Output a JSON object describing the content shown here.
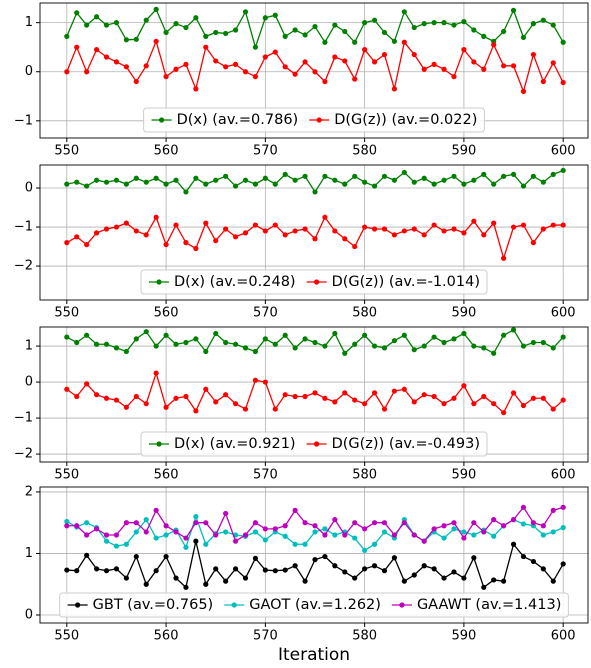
{
  "chart_data": [
    {
      "type": "line",
      "x": [
        550,
        551,
        552,
        553,
        554,
        555,
        556,
        557,
        558,
        559,
        560,
        561,
        562,
        563,
        564,
        565,
        566,
        567,
        568,
        569,
        570,
        571,
        572,
        573,
        574,
        575,
        576,
        577,
        578,
        579,
        580,
        581,
        582,
        583,
        584,
        585,
        586,
        587,
        588,
        589,
        590,
        591,
        592,
        593,
        594,
        595,
        596,
        597,
        598,
        599,
        600
      ],
      "series": [
        {
          "name": "D(x) (av.=0.786)",
          "color": "#008000",
          "values": [
            0.72,
            1.2,
            0.95,
            1.12,
            0.95,
            1.0,
            0.65,
            0.66,
            1.05,
            1.27,
            0.8,
            0.98,
            0.9,
            1.1,
            0.72,
            0.8,
            0.78,
            0.85,
            1.22,
            0.5,
            1.1,
            1.15,
            0.72,
            0.85,
            0.75,
            0.92,
            0.6,
            0.95,
            0.82,
            0.6,
            1.0,
            1.05,
            0.8,
            0.62,
            1.22,
            0.9,
            0.98,
            1.0,
            1.0,
            0.95,
            1.02,
            0.85,
            0.72,
            0.62,
            0.82,
            1.25,
            0.7,
            0.98,
            1.05,
            0.95,
            0.6
          ]
        },
        {
          "name": "D(G(z)) (av.=0.022)",
          "color": "#ff0000",
          "values": [
            0,
            0.5,
            0,
            0.45,
            0.3,
            0.2,
            0.1,
            -0.2,
            0.12,
            0.62,
            -0.1,
            0.05,
            0.15,
            -0.35,
            0.5,
            0.22,
            0.1,
            0.15,
            0,
            -0.1,
            0.3,
            0.4,
            0.1,
            -0.05,
            0.2,
            0,
            -0.2,
            0.3,
            0.22,
            -0.15,
            0.45,
            0.2,
            0.35,
            -0.35,
            0.6,
            0.35,
            0.05,
            0.15,
            0.05,
            -0.1,
            0.45,
            0.2,
            0.05,
            0.55,
            0.12,
            0.12,
            -0.4,
            0.35,
            -0.2,
            0.18,
            -0.22
          ]
        }
      ],
      "xlim": [
        547.3,
        602.5
      ],
      "xticks": [
        550,
        560,
        570,
        580,
        590,
        600
      ],
      "ylim": [
        -1.35,
        1.4
      ],
      "yticks": [
        {
          "value": -1,
          "label": "−1"
        },
        0,
        1
      ],
      "grid": true,
      "legend": "lower center"
    },
    {
      "type": "line",
      "x": [
        550,
        551,
        552,
        553,
        554,
        555,
        556,
        557,
        558,
        559,
        560,
        561,
        562,
        563,
        564,
        565,
        566,
        567,
        568,
        569,
        570,
        571,
        572,
        573,
        574,
        575,
        576,
        577,
        578,
        579,
        580,
        581,
        582,
        583,
        584,
        585,
        586,
        587,
        588,
        589,
        590,
        591,
        592,
        593,
        594,
        595,
        596,
        597,
        598,
        599,
        600
      ],
      "series": [
        {
          "name": "D(x) (av.=0.248)",
          "color": "#008000",
          "values": [
            0.1,
            0.15,
            0.05,
            0.2,
            0.15,
            0.2,
            0.1,
            0.25,
            0.15,
            0.25,
            0.1,
            0.2,
            -0.1,
            0.25,
            0.1,
            0.2,
            0.3,
            0.05,
            0.2,
            0.1,
            0.25,
            0.1,
            0.35,
            0.2,
            0.3,
            -0.1,
            0.3,
            0.2,
            0.1,
            0.3,
            0.15,
            0.05,
            0.3,
            0.2,
            0.4,
            0.15,
            0.25,
            0.1,
            0.2,
            0.3,
            0.1,
            0.2,
            0.35,
            0.1,
            0.3,
            0.35,
            0.05,
            0.3,
            0.15,
            0.35,
            0.45
          ]
        },
        {
          "name": "D(G(z)) (av.=-1.014)",
          "color": "#ff0000",
          "values": [
            -1.4,
            -1.25,
            -1.45,
            -1.15,
            -1.05,
            -1.0,
            -0.9,
            -1.1,
            -1.2,
            -0.75,
            -1.45,
            -0.95,
            -1.4,
            -1.55,
            -0.9,
            -1.35,
            -1.05,
            -1.25,
            -1.15,
            -0.95,
            -1.1,
            -0.95,
            -1.2,
            -1.1,
            -1.05,
            -1.3,
            -0.75,
            -1.1,
            -1.3,
            -1.5,
            -1.0,
            -1.05,
            -1.05,
            -1.2,
            -1.1,
            -1.05,
            -1.2,
            -0.95,
            -1.1,
            -1.05,
            -1.15,
            -0.85,
            -1.2,
            -0.9,
            -1.8,
            -1.0,
            -0.95,
            -1.4,
            -1.05,
            -0.95,
            -0.95
          ]
        }
      ],
      "xlim": [
        547.3,
        602.5
      ],
      "xticks": [
        550,
        560,
        570,
        580,
        590,
        600
      ],
      "ylim": [
        -2.87,
        0.59
      ],
      "yticks": [
        {
          "value": -2,
          "label": "−2"
        },
        {
          "value": -1,
          "label": "−1"
        },
        0
      ],
      "grid": true,
      "legend": "lower center"
    },
    {
      "type": "line",
      "x": [
        550,
        551,
        552,
        553,
        554,
        555,
        556,
        557,
        558,
        559,
        560,
        561,
        562,
        563,
        564,
        565,
        566,
        567,
        568,
        569,
        570,
        571,
        572,
        573,
        574,
        575,
        576,
        577,
        578,
        579,
        580,
        581,
        582,
        583,
        584,
        585,
        586,
        587,
        588,
        589,
        590,
        591,
        592,
        593,
        594,
        595,
        596,
        597,
        598,
        599,
        600
      ],
      "series": [
        {
          "name": "D(x) (av.=0.921)",
          "color": "#008000",
          "values": [
            1.25,
            1.1,
            1.3,
            1.05,
            1.05,
            0.95,
            0.85,
            1.2,
            1.4,
            1.0,
            1.3,
            1.05,
            1.1,
            1.2,
            0.85,
            1.35,
            1.1,
            1.05,
            0.95,
            0.85,
            1.2,
            1.05,
            1.3,
            0.95,
            1.2,
            1.1,
            1.0,
            1.35,
            0.8,
            1.05,
            1.3,
            1.0,
            0.95,
            1.15,
            1.3,
            0.9,
            1.0,
            1.25,
            1.1,
            1.2,
            1.35,
            1.0,
            0.95,
            0.8,
            1.3,
            1.45,
            1.0,
            1.1,
            1.1,
            0.95,
            1.25
          ]
        },
        {
          "name": "D(G(z)) (av.=-0.493)",
          "color": "#ff0000",
          "values": [
            -0.2,
            -0.4,
            -0.05,
            -0.35,
            -0.45,
            -0.5,
            -0.7,
            -0.4,
            -0.6,
            0.25,
            -0.7,
            -0.45,
            -0.4,
            -0.8,
            -0.2,
            -0.55,
            -0.35,
            -0.6,
            -0.75,
            0.05,
            0.0,
            -0.75,
            -0.35,
            -0.4,
            -0.4,
            -0.3,
            -0.45,
            -0.55,
            -0.3,
            -0.5,
            -0.6,
            -0.3,
            -0.75,
            -0.25,
            -0.2,
            -0.55,
            -0.35,
            -0.4,
            -0.6,
            -0.45,
            -0.1,
            -0.6,
            -0.4,
            -0.6,
            -0.85,
            -0.3,
            -0.65,
            -0.45,
            -0.45,
            -0.75,
            -0.5
          ]
        }
      ],
      "xlim": [
        547.3,
        602.5
      ],
      "xticks": [
        550,
        560,
        570,
        580,
        590,
        600
      ],
      "ylim": [
        -2.22,
        1.53
      ],
      "yticks": [
        {
          "value": -2,
          "label": "−2"
        },
        {
          "value": -1,
          "label": "−1"
        },
        0,
        1
      ],
      "grid": true,
      "legend": "lower center"
    },
    {
      "type": "line",
      "x": [
        550,
        551,
        552,
        553,
        554,
        555,
        556,
        557,
        558,
        559,
        560,
        561,
        562,
        563,
        564,
        565,
        566,
        567,
        568,
        569,
        570,
        571,
        572,
        573,
        574,
        575,
        576,
        577,
        578,
        579,
        580,
        581,
        582,
        583,
        584,
        585,
        586,
        587,
        588,
        589,
        590,
        591,
        592,
        593,
        594,
        595,
        596,
        597,
        598,
        599,
        600
      ],
      "x_label": "Iteration",
      "series": [
        {
          "name": "GBT (av.=0.765)",
          "color": "#000000",
          "values": [
            0.73,
            0.72,
            0.97,
            0.75,
            0.72,
            0.75,
            0.6,
            0.95,
            0.5,
            0.72,
            0.95,
            0.6,
            0.45,
            1.2,
            0.5,
            0.75,
            0.55,
            0.75,
            0.6,
            0.92,
            0.73,
            0.72,
            0.73,
            0.8,
            0.55,
            0.9,
            0.95,
            0.8,
            0.7,
            0.6,
            0.75,
            0.8,
            0.72,
            0.93,
            0.55,
            0.65,
            0.8,
            0.75,
            0.6,
            0.7,
            0.6,
            0.93,
            0.45,
            0.57,
            0.55,
            1.15,
            0.95,
            0.87,
            0.75,
            0.55,
            0.83
          ]
        },
        {
          "name": "GAOT (av.=1.262)",
          "color": "#00bfbf",
          "values": [
            1.52,
            1.43,
            1.5,
            1.42,
            1.2,
            1.12,
            1.15,
            1.35,
            1.55,
            1.25,
            1.3,
            1.38,
            1.1,
            1.6,
            1.15,
            1.32,
            1.35,
            1.3,
            1.28,
            1.35,
            1.22,
            1.35,
            1.28,
            1.15,
            1.15,
            1.35,
            1.4,
            1.3,
            1.35,
            1.25,
            1.05,
            1.15,
            1.35,
            1.25,
            1.55,
            1.3,
            1.2,
            1.35,
            1.25,
            1.4,
            1.35,
            1.3,
            1.38,
            1.28,
            1.45,
            1.55,
            1.48,
            1.45,
            1.3,
            1.35,
            1.42
          ]
        },
        {
          "name": "GAAWT (av.=1.413)",
          "color": "#bf00bf",
          "values": [
            1.45,
            1.45,
            1.3,
            1.4,
            1.3,
            1.3,
            1.5,
            1.5,
            1.35,
            1.7,
            1.45,
            1.35,
            1.25,
            1.5,
            1.5,
            1.3,
            1.65,
            1.2,
            1.3,
            1.5,
            1.4,
            1.4,
            1.45,
            1.7,
            1.5,
            1.45,
            1.3,
            1.55,
            1.3,
            1.5,
            1.4,
            1.5,
            1.5,
            1.3,
            1.5,
            1.3,
            1.2,
            1.4,
            1.45,
            1.5,
            1.25,
            1.5,
            1.35,
            1.55,
            1.45,
            1.55,
            1.75,
            1.5,
            1.45,
            1.7,
            1.75
          ]
        }
      ],
      "xlim": [
        547.3,
        602.5
      ],
      "xticks": [
        550,
        560,
        570,
        580,
        590,
        600
      ],
      "ylim": [
        -0.13,
        2.08
      ],
      "yticks": [
        0,
        1,
        2
      ],
      "grid": true,
      "legend": "lower center"
    }
  ]
}
